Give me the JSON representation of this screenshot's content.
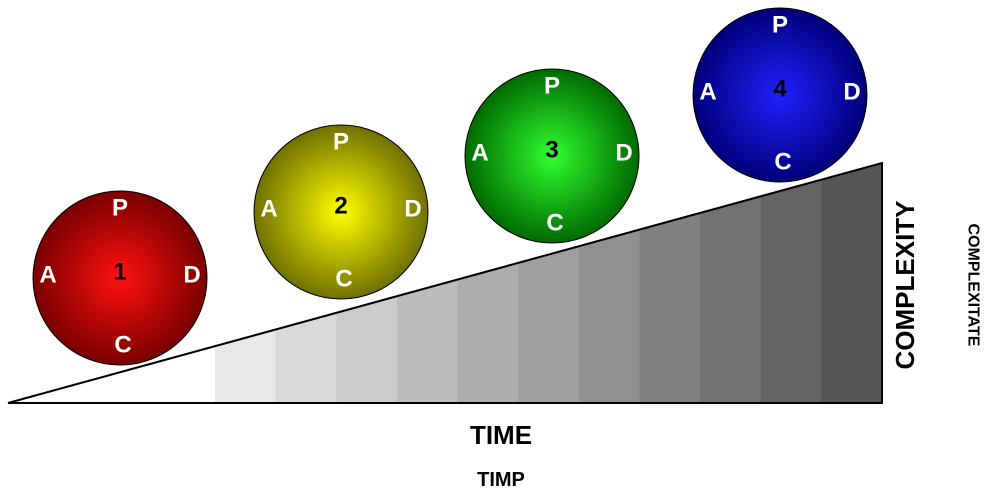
{
  "axes": {
    "x_label": "TIME",
    "x_label_translation": "TIMP",
    "y_label": "COMPLEXITY",
    "y_label_translation": "COMPLEXITATE"
  },
  "circles": [
    {
      "number": "1",
      "plan": "P",
      "act": "A",
      "do": "D",
      "check": "C"
    },
    {
      "number": "2",
      "plan": "P",
      "act": "A",
      "do": "D",
      "check": "C"
    },
    {
      "number": "3",
      "plan": "P",
      "act": "A",
      "do": "D",
      "check": "C"
    },
    {
      "number": "4",
      "plan": "P",
      "act": "A",
      "do": "D",
      "check": "C"
    }
  ]
}
